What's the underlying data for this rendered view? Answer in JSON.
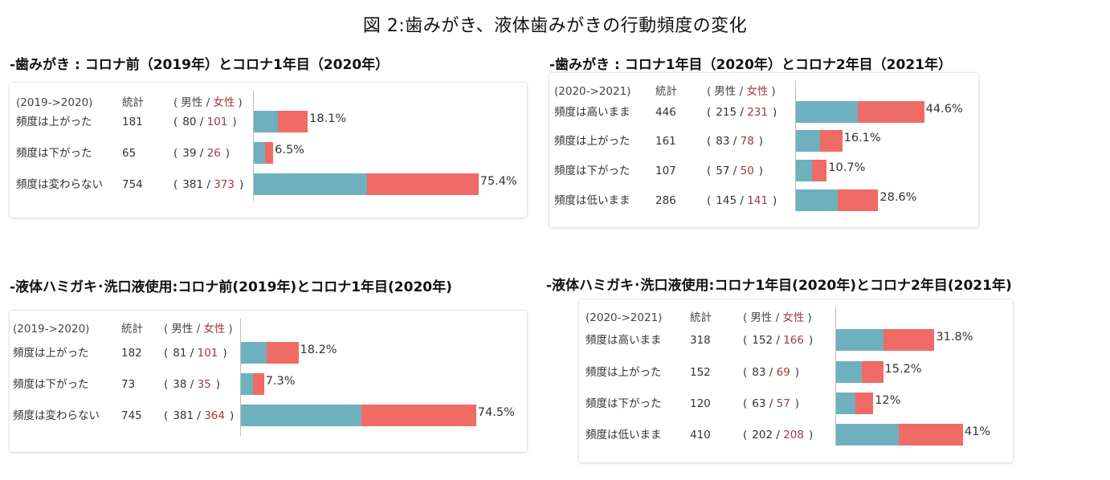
{
  "title": "図 2:歯みがき、液体歯みがきの行動頻度の変化",
  "colors": {
    "male": "#6fb0be",
    "female": "#f06a66",
    "female_text": "#a03a3a"
  },
  "chart_data": [
    {
      "type": "bar",
      "stacked": true,
      "orientation": "horizontal",
      "title": "-歯みがき : コロナ前（2019年）とコロナ1年目（2020年）",
      "header": {
        "period": "(2019->2020)",
        "stat": "統計",
        "open": "(",
        "male": "男性",
        "sep": "/",
        "female": "女性",
        "close": ")"
      },
      "rows": [
        {
          "label": "頻度は上がった",
          "total": "181",
          "male": "80",
          "female": "101",
          "pct": 18.1,
          "pct_label": "18.1%"
        },
        {
          "label": "頻度は下がった",
          "total": "65",
          "male": "39",
          "female": "26",
          "pct": 6.5,
          "pct_label": "6.5%"
        },
        {
          "label": "頻度は変わらない",
          "total": "754",
          "male": "381",
          "female": "373",
          "pct": 75.4,
          "pct_label": "75.4%"
        }
      ]
    },
    {
      "type": "bar",
      "stacked": true,
      "orientation": "horizontal",
      "title": "-歯みがき : コロナ1年目（2020年）とコロナ2年目（2021年）",
      "header": {
        "period": "(2020->2021)",
        "stat": "統計",
        "open": "(",
        "male": "男性",
        "sep": "/",
        "female": "女性",
        "close": ")"
      },
      "rows": [
        {
          "label": "頻度は高いまま",
          "total": "446",
          "male": "215",
          "female": "231",
          "pct": 44.6,
          "pct_label": "44.6%"
        },
        {
          "label": "頻度は上がった",
          "total": "161",
          "male": "83",
          "female": "78",
          "pct": 16.1,
          "pct_label": "16.1%"
        },
        {
          "label": "頻度は下がった",
          "total": "107",
          "male": "57",
          "female": "50",
          "pct": 10.7,
          "pct_label": "10.7%"
        },
        {
          "label": "頻度は低いまま",
          "total": "286",
          "male": "145",
          "female": "141",
          "pct": 28.6,
          "pct_label": "28.6%"
        }
      ]
    },
    {
      "type": "bar",
      "stacked": true,
      "orientation": "horizontal",
      "title": "-液体ハミガキ･洗口液使用:コロナ前(2019年)とコロナ1年目(2020年)",
      "header": {
        "period": "(2019->2020)",
        "stat": "統計",
        "open": "(",
        "male": "男性",
        "sep": "/",
        "female": "女性",
        "close": ")"
      },
      "rows": [
        {
          "label": "頻度は上がった",
          "total": "182",
          "male": "81",
          "female": "101",
          "pct": 18.2,
          "pct_label": "18.2%"
        },
        {
          "label": "頻度は下がった",
          "total": "73",
          "male": "38",
          "female": "35",
          "pct": 7.3,
          "pct_label": "7.3%"
        },
        {
          "label": "頻度は変わらない",
          "total": "745",
          "male": "381",
          "female": "364",
          "pct": 74.5,
          "pct_label": "74.5%"
        }
      ]
    },
    {
      "type": "bar",
      "stacked": true,
      "orientation": "horizontal",
      "title": "-液体ハミガキ･洗口液使用:コロナ1年目(2020年)とコロナ2年目(2021年)",
      "header": {
        "period": "(2020->2021)",
        "stat": "統計",
        "open": "(",
        "male": "男性",
        "sep": "/",
        "female": "女性",
        "close": ")"
      },
      "rows": [
        {
          "label": "頻度は高いまま",
          "total": "318",
          "male": "152",
          "female": "166",
          "pct": 31.8,
          "pct_label": "31.8%"
        },
        {
          "label": "頻度は上がった",
          "total": "152",
          "male": "83",
          "female": "69",
          "pct": 15.2,
          "pct_label": "15.2%"
        },
        {
          "label": "頻度は下がった",
          "total": "120",
          "male": "63",
          "female": "57",
          "pct": 12,
          "pct_label": "12%"
        },
        {
          "label": "頻度は低いまま",
          "total": "410",
          "male": "202",
          "female": "208",
          "pct": 41,
          "pct_label": "41%"
        }
      ]
    }
  ]
}
